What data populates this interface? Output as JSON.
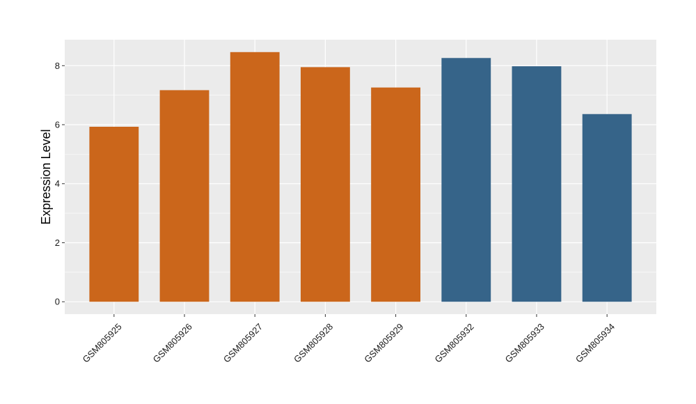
{
  "chart_data": {
    "type": "bar",
    "title": "",
    "xlabel": "",
    "ylabel": "Expression Level",
    "categories": [
      "GSM805925",
      "GSM805926",
      "GSM805927",
      "GSM805928",
      "GSM805929",
      "GSM805932",
      "GSM805933",
      "GSM805934"
    ],
    "values": [
      5.93,
      7.17,
      8.46,
      7.95,
      7.26,
      8.26,
      7.98,
      6.36
    ],
    "group_index": [
      0,
      0,
      0,
      0,
      0,
      1,
      1,
      1
    ],
    "group_colors": [
      "#CB661B",
      "#366489"
    ],
    "yticks": [
      0,
      2,
      4,
      6,
      8
    ],
    "ylim": [
      -0.42,
      8.88
    ],
    "grid": true,
    "legend": "none"
  }
}
